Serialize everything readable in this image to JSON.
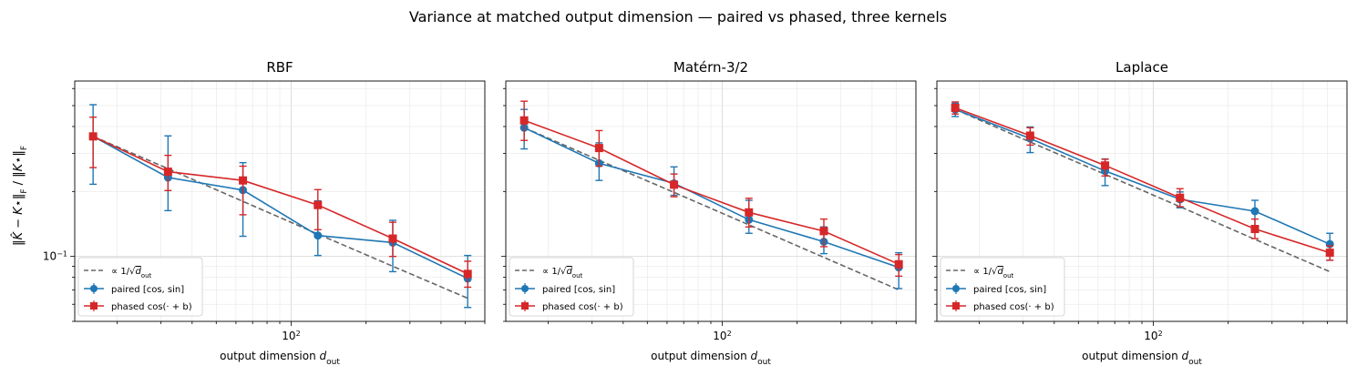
{
  "figure": {
    "suptitle": "Variance at matched output dimension — paired vs phased, three kernels",
    "ylabel": "‖K̂ − K⋆‖F / ‖K⋆‖F"
  },
  "legend": {
    "ref_label": "∝ 1/√d_out",
    "paired_label": "paired [cos, sin]",
    "phased_label": "phased cos(· + b)"
  },
  "colors": {
    "paired": "#1f77b4",
    "phased": "#d62728",
    "ref": "#666666",
    "grid": "#e6e6e6"
  },
  "chart_data": [
    {
      "type": "line",
      "title": "RBF",
      "xlabel": "output dimension d_out",
      "x_scale": "log",
      "y_scale": "log",
      "xlim": [
        13.5,
        600
      ],
      "ylim": [
        0.05,
        0.65
      ],
      "x_ticks": [
        {
          "v": 100,
          "label": "10²"
        }
      ],
      "y_ticks": [
        {
          "v": 0.1,
          "label": "10⁻¹"
        }
      ],
      "grid": true,
      "legend_position": "lower-left",
      "x": [
        16,
        32,
        64,
        128,
        256,
        512
      ],
      "series": [
        {
          "name": "paired [cos, sin]",
          "values": [
            0.36,
            0.232,
            0.203,
            0.125,
            0.116,
            0.079
          ],
          "err_low": [
            0.216,
            0.163,
            0.124,
            0.101,
            0.085,
            0.058
          ],
          "err_high": [
            0.505,
            0.362,
            0.272,
            0.181,
            0.147,
            0.101
          ]
        },
        {
          "name": "phased cos(· + b)",
          "values": [
            0.36,
            0.247,
            0.225,
            0.173,
            0.121,
            0.083
          ],
          "err_low": [
            0.258,
            0.202,
            0.156,
            0.133,
            0.1,
            0.072
          ],
          "err_high": [
            0.442,
            0.294,
            0.262,
            0.204,
            0.144,
            0.095
          ]
        }
      ],
      "reference": {
        "name": "∝ 1/√d_out",
        "values": [
          0.36,
          0.255,
          0.18,
          0.127,
          0.09,
          0.064
        ]
      }
    },
    {
      "type": "line",
      "title": "Matérn-3/2",
      "xlabel": "output dimension d_out",
      "x_scale": "log",
      "y_scale": "log",
      "xlim": [
        13.5,
        600
      ],
      "ylim": [
        0.05,
        0.65
      ],
      "x_ticks": [
        {
          "v": 100,
          "label": "10²"
        }
      ],
      "y_ticks": [],
      "grid": true,
      "legend_position": "lower-left",
      "x": [
        16,
        32,
        64,
        128,
        256,
        512
      ],
      "series": [
        {
          "name": "paired [cos, sin]",
          "values": [
            0.395,
            0.27,
            0.218,
            0.148,
            0.117,
            0.089
          ],
          "err_low": [
            0.315,
            0.225,
            0.192,
            0.128,
            0.103,
            0.071
          ],
          "err_high": [
            0.48,
            0.336,
            0.26,
            0.182,
            0.137,
            0.104
          ]
        },
        {
          "name": "phased cos(· + b)",
          "values": [
            0.427,
            0.318,
            0.215,
            0.16,
            0.131,
            0.092
          ],
          "err_low": [
            0.345,
            0.262,
            0.189,
            0.137,
            0.111,
            0.081
          ],
          "err_high": [
            0.524,
            0.383,
            0.241,
            0.186,
            0.149,
            0.102
          ]
        }
      ],
      "reference": {
        "name": "∝ 1/√d_out",
        "values": [
          0.395,
          0.279,
          0.198,
          0.14,
          0.099,
          0.07
        ]
      }
    },
    {
      "type": "line",
      "title": "Laplace",
      "xlabel": "output dimension d_out",
      "x_scale": "log",
      "y_scale": "log",
      "xlim": [
        13.5,
        600
      ],
      "ylim": [
        0.05,
        0.65
      ],
      "x_ticks": [
        {
          "v": 100,
          "label": "10²"
        }
      ],
      "y_ticks": [],
      "grid": true,
      "legend_position": "lower-left",
      "x": [
        16,
        32,
        64,
        128,
        256,
        512
      ],
      "series": [
        {
          "name": "paired [cos, sin]",
          "values": [
            0.48,
            0.352,
            0.249,
            0.184,
            0.162,
            0.114
          ],
          "err_low": [
            0.445,
            0.303,
            0.213,
            0.168,
            0.139,
            0.096
          ],
          "err_high": [
            0.513,
            0.398,
            0.283,
            0.199,
            0.182,
            0.128
          ]
        },
        {
          "name": "phased cos(· + b)",
          "values": [
            0.488,
            0.363,
            0.264,
            0.187,
            0.134,
            0.104
          ],
          "err_low": [
            0.457,
            0.328,
            0.236,
            0.17,
            0.121,
            0.096
          ],
          "err_high": [
            0.52,
            0.395,
            0.282,
            0.206,
            0.149,
            0.112
          ]
        }
      ],
      "reference": {
        "name": "∝ 1/√d_out",
        "values": [
          0.48,
          0.339,
          0.24,
          0.17,
          0.12,
          0.085
        ]
      }
    }
  ]
}
